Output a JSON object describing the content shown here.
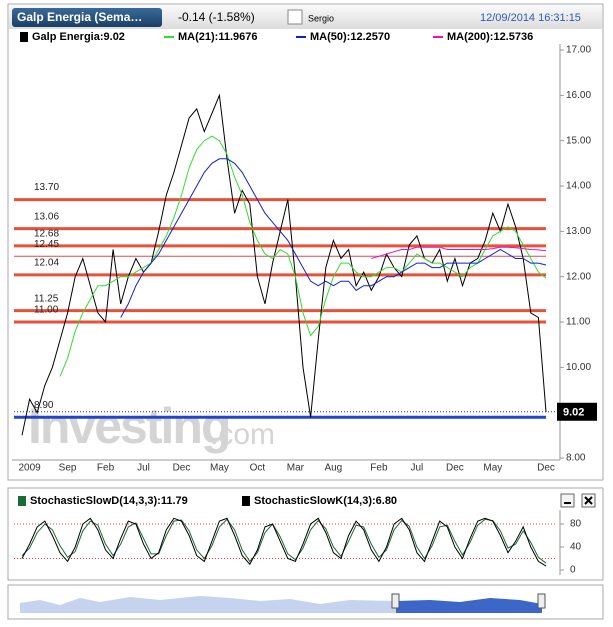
{
  "header": {
    "tab": "Galp Energia (Sema…",
    "change": "-0.14 (-1.58%)",
    "user": "Sergio",
    "datetime": "12/09/2014 16:31:15"
  },
  "watermark": {
    "brand": "Investing",
    "suffix": ".com"
  },
  "chart_data": [
    {
      "type": "line",
      "categories": [
        null,
        "2009",
        null,
        null,
        null,
        null,
        "Sep",
        null,
        null,
        null,
        null,
        "Feb",
        null,
        null,
        null,
        null,
        "Jul",
        null,
        null,
        null,
        null,
        "Dec",
        null,
        null,
        null,
        null,
        "May",
        null,
        null,
        null,
        null,
        "Oct",
        null,
        null,
        null,
        null,
        "Mar",
        null,
        null,
        null,
        null,
        "Aug",
        null,
        null,
        null,
        null,
        null,
        "Feb",
        null,
        null,
        null,
        null,
        "Jul",
        null,
        null,
        null,
        null,
        "Dec",
        null,
        null,
        null,
        null,
        "May",
        null,
        null,
        null,
        null,
        null,
        null,
        "Dec"
      ],
      "series": [
        {
          "name": "Galp Energia:9.02",
          "color": "#000000",
          "values": [
            8.5,
            9.3,
            9.0,
            9.6,
            10.0,
            10.6,
            11.2,
            12.0,
            12.4,
            11.8,
            11.2,
            11.0,
            12.6,
            11.4,
            12.0,
            12.4,
            12.1,
            12.3,
            13.0,
            13.8,
            14.3,
            14.9,
            15.5,
            15.7,
            15.2,
            15.6,
            16.0,
            14.6,
            13.4,
            13.9,
            13.6,
            12.0,
            11.4,
            12.3,
            13.0,
            13.7,
            12.0,
            10.0,
            8.9,
            10.6,
            12.2,
            12.8,
            12.4,
            12.6,
            11.8,
            12.1,
            11.7,
            12.0,
            12.5,
            12.2,
            12.0,
            12.7,
            12.9,
            12.4,
            12.3,
            12.6,
            11.9,
            12.4,
            11.8,
            12.3,
            12.4,
            12.8,
            13.4,
            13.0,
            13.6,
            13.1,
            12.4,
            11.2,
            11.1,
            9.02
          ]
        },
        {
          "name": "MA(21):11.9676",
          "color": "#33dd33",
          "values": [
            null,
            null,
            null,
            null,
            null,
            9.8,
            10.2,
            10.8,
            11.2,
            11.5,
            11.8,
            11.8,
            11.9,
            12.0,
            12.0,
            12.1,
            12.2,
            12.3,
            12.6,
            12.9,
            13.3,
            13.8,
            14.4,
            14.8,
            15.0,
            15.1,
            15.0,
            14.7,
            14.2,
            13.8,
            13.2,
            12.8,
            12.5,
            12.4,
            12.6,
            12.5,
            12.0,
            11.2,
            10.7,
            10.9,
            11.5,
            12.0,
            12.3,
            12.3,
            12.1,
            12.0,
            12.0,
            12.1,
            12.2,
            12.2,
            12.1,
            12.3,
            12.5,
            12.4,
            12.3,
            12.3,
            12.2,
            12.1,
            12.0,
            12.2,
            12.3,
            12.6,
            12.9,
            13.0,
            13.1,
            13.0,
            12.7,
            12.4,
            12.1,
            11.9676
          ]
        },
        {
          "name": "MA(50):12.2570",
          "color": "#1122cc",
          "values": [
            null,
            null,
            null,
            null,
            null,
            null,
            null,
            null,
            null,
            null,
            null,
            null,
            null,
            11.1,
            11.4,
            11.8,
            12.1,
            12.3,
            12.5,
            12.8,
            13.1,
            13.4,
            13.7,
            14.0,
            14.3,
            14.5,
            14.6,
            14.6,
            14.5,
            14.3,
            14.0,
            13.7,
            13.4,
            13.2,
            13.0,
            12.8,
            12.5,
            12.2,
            11.9,
            11.8,
            11.9,
            11.8,
            11.9,
            11.9,
            11.7,
            11.8,
            11.8,
            11.9,
            12.0,
            12.0,
            12.1,
            12.2,
            12.3,
            12.3,
            12.2,
            12.2,
            12.3,
            12.3,
            12.3,
            12.3,
            12.3,
            12.4,
            12.5,
            12.6,
            12.5,
            12.4,
            12.4,
            12.3,
            12.3,
            12.257
          ]
        },
        {
          "name": "MA(200):12.5736",
          "color": "#ee11bb",
          "values": [
            null,
            null,
            null,
            null,
            null,
            null,
            null,
            null,
            null,
            null,
            null,
            null,
            null,
            null,
            null,
            null,
            null,
            null,
            null,
            null,
            null,
            null,
            null,
            null,
            null,
            null,
            null,
            null,
            null,
            null,
            null,
            null,
            null,
            null,
            null,
            null,
            null,
            null,
            null,
            null,
            null,
            null,
            null,
            null,
            null,
            null,
            12.4,
            12.45,
            12.5,
            12.55,
            12.6,
            12.6,
            12.65,
            12.65,
            12.65,
            12.65,
            12.6,
            12.6,
            12.6,
            12.6,
            12.6,
            12.6,
            12.62,
            12.65,
            12.65,
            12.64,
            12.62,
            12.6,
            12.59,
            12.5736
          ]
        }
      ],
      "levels": [
        {
          "value": 13.7,
          "label": "13.70",
          "color": "#e8503a"
        },
        {
          "value": 13.06,
          "label": "13.06",
          "color": "#e8503a"
        },
        {
          "value": 12.68,
          "label": "12.68",
          "color": "#e8503a"
        },
        {
          "value": 12.45,
          "label": "12.45",
          "color": "#d05050"
        },
        {
          "value": 12.04,
          "label": "12.04",
          "color": "#e8503a"
        },
        {
          "value": 11.25,
          "label": "11.25",
          "color": "#e8503a"
        },
        {
          "value": 11.0,
          "label": "11.00",
          "color": "#e8503a"
        },
        {
          "value": 8.9,
          "label": "8.90",
          "color": "#2244cc"
        }
      ],
      "ylim": [
        8,
        17
      ],
      "yticks": [
        {
          "value": 8,
          "label": "8.00"
        },
        {
          "value": 9,
          "label": "9.00"
        },
        {
          "value": 10,
          "label": "10.00"
        },
        {
          "value": 11,
          "label": "11.00"
        },
        {
          "value": 12,
          "label": "12.00"
        },
        {
          "value": 13,
          "label": "13.00"
        },
        {
          "value": 14,
          "label": "14.00"
        },
        {
          "value": 15,
          "label": "15.00"
        },
        {
          "value": 16,
          "label": "16.00"
        },
        {
          "value": 17,
          "label": "17.00"
        }
      ],
      "grid": false
    },
    {
      "type": "line",
      "series": [
        {
          "name": "StochasticSlowD(14,3,3):11.79",
          "color": "#1a6b3a",
          "values": [
            25,
            38,
            65,
            80,
            70,
            42,
            22,
            32,
            68,
            85,
            78,
            45,
            25,
            45,
            75,
            82,
            55,
            28,
            28,
            60,
            85,
            87,
            68,
            35,
            20,
            42,
            75,
            88,
            70,
            35,
            15,
            30,
            65,
            80,
            58,
            28,
            18,
            38,
            70,
            86,
            72,
            40,
            24,
            50,
            78,
            75,
            45,
            22,
            35,
            70,
            86,
            76,
            40,
            20,
            42,
            75,
            78,
            50,
            26,
            48,
            78,
            88,
            86,
            68,
            38,
            45,
            68,
            48,
            22,
            11.79
          ]
        },
        {
          "name": "StochasticSlowK(14,3):6.80",
          "color": "#000000",
          "values": [
            20,
            45,
            75,
            85,
            60,
            30,
            15,
            40,
            80,
            90,
            70,
            35,
            20,
            55,
            85,
            80,
            45,
            20,
            30,
            70,
            90,
            85,
            60,
            25,
            15,
            50,
            85,
            90,
            60,
            25,
            10,
            35,
            75,
            80,
            50,
            20,
            15,
            45,
            80,
            90,
            65,
            30,
            20,
            60,
            85,
            70,
            35,
            15,
            40,
            80,
            90,
            70,
            30,
            15,
            50,
            85,
            75,
            40,
            20,
            55,
            85,
            90,
            85,
            60,
            30,
            50,
            75,
            40,
            15,
            6.8
          ]
        }
      ],
      "levels": [
        80,
        20
      ],
      "ylim": [
        -3,
        95
      ],
      "yticks": [
        0,
        40,
        80
      ]
    }
  ]
}
